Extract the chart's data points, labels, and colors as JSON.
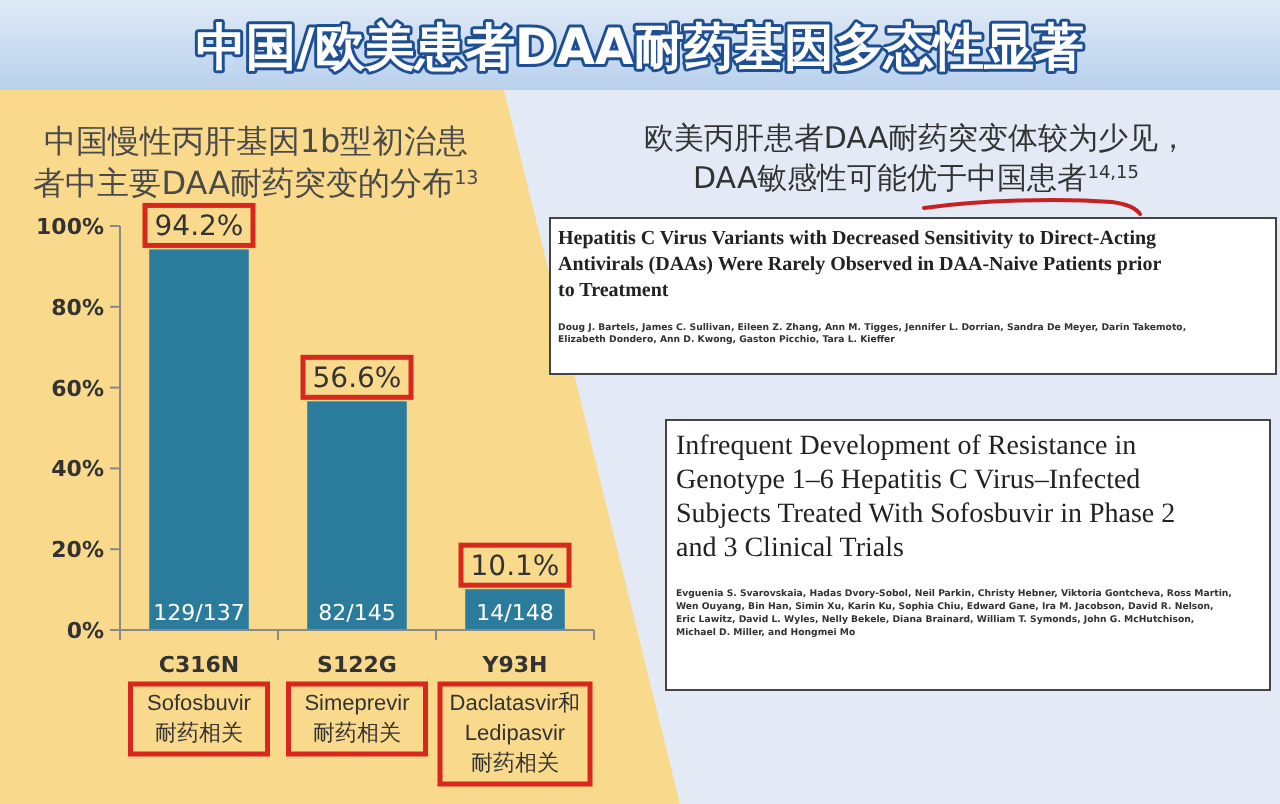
{
  "chart_data": {
    "type": "bar",
    "title": "中国/欧美患者DAA耐药基因多态性显著",
    "subtitle": "中国慢性丙肝基因1b型初治患者中主要DAA耐药突变的分布$^{13}$",
    "categories": [
      "C316N",
      "S122G",
      "Y93H"
    ],
    "values": [
      94.2,
      56.6,
      10.1
    ],
    "color": "#2b7c9c",
    "value_labels": [
      "94.2%",
      "56.6%",
      "10.1%"
    ],
    "ylim": [
      0,
      100
    ],
    "yticks": [
      {
        "value": 0,
        "label": "0%"
      },
      {
        "value": 20,
        "label": "20%"
      },
      {
        "value": 40,
        "label": "40%"
      },
      {
        "value": 60,
        "label": "60%"
      },
      {
        "value": 80,
        "label": "80%"
      },
      {
        "value": 100,
        "label": "100%"
      }
    ],
    "grid": false,
    "annotations": [
      "欧美丙肝患者DAA耐药突变体较为少见，\nDAA敏感性可能优于中国患者$^{14,15}$",
      "Hepatitis C Virus Variants with Decreased Sensitivity to Direct-Acting\nAntivirals (DAAs) Were Rarely Observed in DAA-Naive Patients prior\nto Treatment",
      "Doug J. Bartels, James C. Sullivan, Eileen Z. Zhang, Ann M. Tigges, Jennifer L. Dorrian, Sandra De Meyer, Darin Takemoto,\nElizabeth Dondero, Ann D. Kwong, Gaston Picchio, Tara L. Kieffer",
      "Infrequent Development of Resistance in\nGenotype 1–6 Hepatitis C Virus–Infected\nSubjects Treated With Sofosbuvir in Phase 2\nand 3 Clinical Trials",
      "Evguenia S. Svarovskaia, Hadas Dvory-Sobol, Neil Parkin, Christy Hebner, Viktoria Gontcheva, Ross Martin,\nWen Ouyang, Bin Han, Simin Xu, Karin Ku, Sophia Chiu, Edward Gane, Ira M. Jacobson, David R. Nelson,\nEric Lawitz, David L. Wyles, Nelly Bekele, Diana Brainard, William T. Symonds, John G. McHutchison,\nMichael D. Miller, and Hongmei Mo",
      {
        "text": "129/137",
        "x": "C316N",
        "y": 0
      },
      {
        "text": "82/145",
        "x": "S122G",
        "y": 0
      },
      {
        "text": "14/148",
        "x": "Y93H",
        "y": 0
      },
      "Sofosbuvir耐药相关",
      "Simeprevir耐药相关",
      "Daclatasvir和Ledipasvir耐药相关"
    ]
  }
}
